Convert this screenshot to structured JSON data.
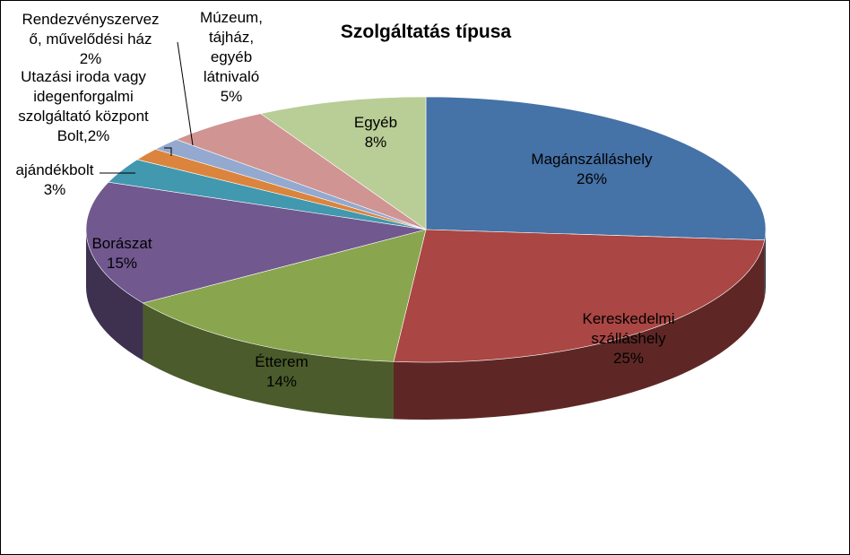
{
  "chart_data": {
    "type": "pie",
    "title": "Szolgáltatás típusa",
    "slices": [
      {
        "label_lines": [
          "Magánszálláshely",
          "26%"
        ],
        "value": 26,
        "color": "#4572a7"
      },
      {
        "label_lines": [
          "Kereskedelmi",
          "szálláshely",
          "25%"
        ],
        "value": 25,
        "color": "#aa4643"
      },
      {
        "label_lines": [
          "Étterem",
          "14%"
        ],
        "value": 14,
        "color": "#89a54e"
      },
      {
        "label_lines": [
          "Borászat",
          "15%"
        ],
        "value": 15,
        "color": "#71588f"
      },
      {
        "label_lines": [
          "ajándékbolt",
          "3%"
        ],
        "value": 3,
        "color": "#4198af"
      },
      {
        "label_lines": [
          "Utazási iroda vagy",
          "idegenforgalmi",
          "szolgáltató központ",
          "Bolt,2%"
        ],
        "value": 1.5,
        "color": "#db843d"
      },
      {
        "label_lines": [
          "Rendezvényszervez",
          "ő, művelődési ház",
          "2%"
        ],
        "value": 1.5,
        "color": "#93a9cf"
      },
      {
        "label_lines": [
          "Múzeum,",
          "tájház,",
          "egyéb",
          "látnivaló",
          "5%"
        ],
        "value": 5,
        "color": "#d09493"
      },
      {
        "label_lines": [
          "Egyéb",
          "8%"
        ],
        "value": 8,
        "color": "#b9cd96"
      }
    ]
  }
}
